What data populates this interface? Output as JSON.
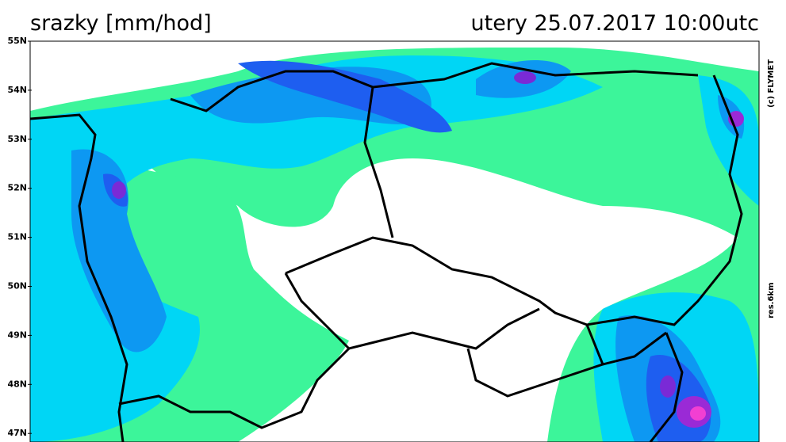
{
  "header": {
    "title": "srazky [mm/hod]",
    "timestamp": "utery 25.07.2017 10:00utc"
  },
  "map": {
    "lat_labels": [
      "55N",
      "54N",
      "53N",
      "52N",
      "51N",
      "50N",
      "49N",
      "48N",
      "47N"
    ],
    "credit": "(c) FLYMET",
    "resolution": "res.6km"
  }
}
